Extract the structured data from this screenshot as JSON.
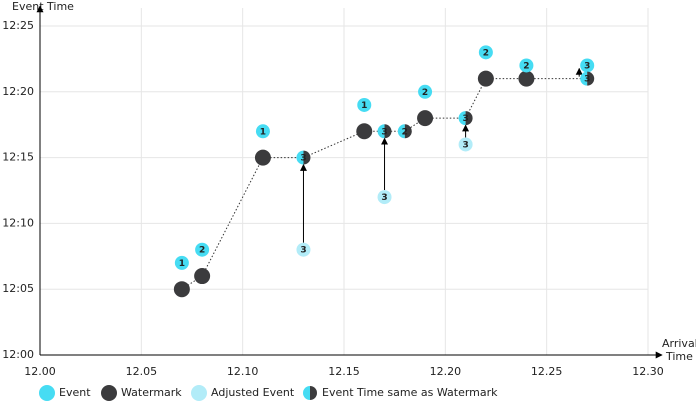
{
  "chart_data": {
    "type": "scatter",
    "y_label": "Event Time",
    "x_label": [
      "Arrival",
      "Time"
    ],
    "xlim": [
      0,
      30
    ],
    "ylim": [
      0,
      25
    ],
    "xticks": [
      {
        "value": 0,
        "label": "12.00"
      },
      {
        "value": 5,
        "label": "12.05"
      },
      {
        "value": 10,
        "label": "12.10"
      },
      {
        "value": 15,
        "label": "12.15"
      },
      {
        "value": 20,
        "label": "12.20"
      },
      {
        "value": 25,
        "label": "12.25"
      },
      {
        "value": 30,
        "label": "12.30"
      }
    ],
    "yticks": [
      {
        "value": 0,
        "label": "12:00"
      },
      {
        "value": 5,
        "label": "12:05"
      },
      {
        "value": 10,
        "label": "12:10"
      },
      {
        "value": 15,
        "label": "12:15"
      },
      {
        "value": 20,
        "label": "12:20"
      },
      {
        "value": 25,
        "label": "12:25"
      }
    ],
    "grid": true,
    "series": [
      {
        "name": "Event",
        "color": "#46dcf3",
        "text_color": "#1d2b4a",
        "x": [
          7,
          8,
          11,
          16,
          19,
          22,
          24,
          27
        ],
        "values": [
          7,
          8,
          17,
          19,
          20,
          23,
          22,
          22
        ],
        "labels": [
          "1",
          "2",
          "1",
          "1",
          "2",
          "2",
          "2",
          "3"
        ]
      },
      {
        "name": "Watermark",
        "color": "#3b3b3d",
        "x": [
          7,
          8,
          11,
          13,
          16,
          17,
          18,
          19,
          21,
          22,
          24,
          27
        ],
        "values": [
          5,
          6,
          15,
          15,
          17,
          17,
          17,
          18,
          18,
          21,
          21,
          21
        ]
      },
      {
        "name": "Adjusted Event",
        "color": "#b2ecf8",
        "text_color": "#3aa6c8",
        "x": [
          13,
          17,
          21
        ],
        "values": [
          8,
          12,
          16
        ],
        "labels": [
          "3",
          "3",
          "3"
        ]
      },
      {
        "name": "Event Time same as Watermark",
        "color": "#46dcf3",
        "color2": "#3b3b3d",
        "text_color": "#ffffff",
        "x": [
          13,
          17,
          18,
          21,
          27
        ],
        "values": [
          15,
          17,
          17,
          18,
          21
        ],
        "labels": [
          "3",
          "3",
          "2",
          "3",
          "3"
        ]
      }
    ]
  }
}
